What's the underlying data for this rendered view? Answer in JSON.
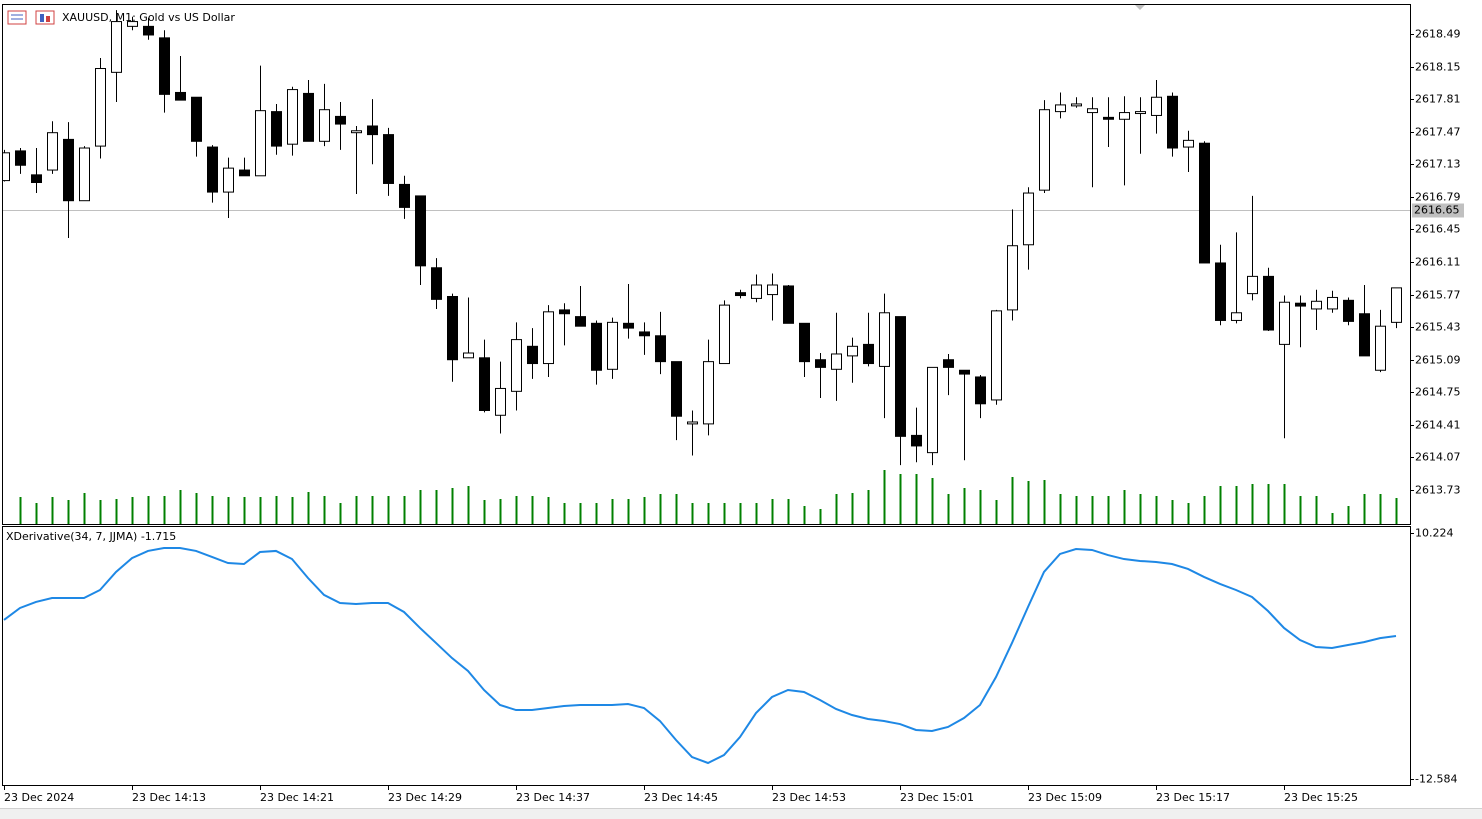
{
  "chart_data": [
    {
      "type": "candlestick",
      "title": "XAUUSD, M1:  Gold vs US Dollar",
      "categories": [
        "23 Dec 2024",
        null,
        null,
        null,
        null,
        null,
        null,
        null,
        "23 Dec 14:13",
        null,
        null,
        null,
        null,
        null,
        null,
        null,
        "23 Dec 14:21",
        null,
        null,
        null,
        null,
        null,
        null,
        null,
        "23 Dec 14:29",
        null,
        null,
        null,
        null,
        null,
        null,
        null,
        "23 Dec 14:37",
        null,
        null,
        null,
        null,
        null,
        null,
        null,
        "23 Dec 14:45",
        null,
        null,
        null,
        null,
        null,
        null,
        null,
        "23 Dec 14:53",
        null,
        null,
        null,
        null,
        null,
        null,
        null,
        "23 Dec 15:01",
        null,
        null,
        null,
        null,
        null,
        null,
        null,
        "23 Dec 15:09",
        null,
        null,
        null,
        null,
        null,
        null,
        null,
        "23 Dec 15:17",
        null,
        null,
        null,
        null,
        null,
        null,
        null,
        "23 Dec 15:25",
        null,
        null,
        null,
        null,
        null,
        null,
        null
      ],
      "open": [
        2616.96,
        2617.27,
        2617.02,
        2617.07,
        2617.39,
        2616.75,
        2617.32,
        2618.09,
        2618.57,
        2618.57,
        2618.45,
        2617.88,
        2617.83,
        2617.31,
        2616.84,
        2617.07,
        2617.01,
        2617.68,
        2617.34,
        2617.87,
        2617.37,
        2617.63,
        2617.46,
        2617.53,
        2617.44,
        2616.92,
        2616.8,
        2616.05,
        2615.75,
        2615.11,
        2615.11,
        2614.51,
        2614.76,
        2615.23,
        2615.05,
        2615.61,
        2615.54,
        2615.47,
        2614.99,
        2615.47,
        2615.38,
        2615.34,
        2615.07,
        2614.42,
        2614.42,
        2615.05,
        2615.79,
        2615.73,
        2615.77,
        2615.86,
        2615.47,
        2615.09,
        2614.99,
        2615.13,
        2615.25,
        2615.02,
        2615.54,
        2614.3,
        2614.12,
        2615.09,
        2614.98,
        2614.91,
        2614.67,
        2615.61,
        2616.29,
        2616.86,
        2617.68,
        2617.74,
        2617.67,
        2617.62,
        2617.6,
        2617.66,
        2617.64,
        2617.84,
        2617.31,
        2617.35,
        2616.1,
        2615.5,
        2615.78,
        2615.96,
        2615.25,
        2615.68,
        2615.62,
        2615.62,
        2615.71,
        2615.57,
        2614.98,
        2615.48
      ],
      "high": [
        2617.28,
        2617.3,
        2617.3,
        2617.58,
        2617.57,
        2617.32,
        2618.24,
        2618.74,
        2618.67,
        2618.66,
        2618.53,
        2618.26,
        2617.83,
        2617.33,
        2617.2,
        2617.2,
        2618.16,
        2617.76,
        2617.94,
        2618.01,
        2617.97,
        2617.78,
        2617.53,
        2617.81,
        2617.51,
        2617.01,
        2616.8,
        2616.15,
        2615.78,
        2615.74,
        2615.3,
        2615.07,
        2615.48,
        2615.42,
        2615.66,
        2615.68,
        2615.86,
        2615.5,
        2615.53,
        2615.88,
        2615.48,
        2615.59,
        2615.07,
        2614.56,
        2615.3,
        2615.71,
        2615.82,
        2615.98,
        2615.99,
        2615.87,
        2615.47,
        2615.16,
        2615.58,
        2615.32,
        2615.58,
        2615.78,
        2615.54,
        2614.59,
        2615.01,
        2615.15,
        2614.98,
        2614.93,
        2615.61,
        2616.66,
        2616.89,
        2617.8,
        2617.88,
        2617.83,
        2617.83,
        2617.83,
        2617.84,
        2617.83,
        2618.01,
        2617.88,
        2617.48,
        2617.37,
        2616.29,
        2616.42,
        2616.8,
        2616.05,
        2615.76,
        2615.76,
        2615.82,
        2615.81,
        2615.74,
        2615.87,
        2615.61,
        2615.84
      ],
      "low": [
        2616.95,
        2617.03,
        2616.83,
        2617.03,
        2616.36,
        2616.75,
        2617.19,
        2617.78,
        2618.53,
        2618.43,
        2617.67,
        2617.8,
        2617.21,
        2616.73,
        2616.57,
        2617.01,
        2617.01,
        2617.23,
        2617.22,
        2617.37,
        2617.32,
        2617.28,
        2616.82,
        2617.13,
        2616.8,
        2616.56,
        2615.87,
        2615.62,
        2614.86,
        2615.11,
        2614.54,
        2614.32,
        2614.56,
        2614.89,
        2614.91,
        2615.24,
        2615.44,
        2614.83,
        2614.89,
        2615.31,
        2615.14,
        2614.94,
        2614.25,
        2614.09,
        2614.3,
        2615.05,
        2615.73,
        2615.69,
        2615.5,
        2615.47,
        2614.91,
        2614.69,
        2614.66,
        2614.85,
        2615.02,
        2614.48,
        2613.99,
        2614.02,
        2613.99,
        2614.72,
        2614.04,
        2614.48,
        2614.62,
        2615.5,
        2616.03,
        2616.83,
        2617.61,
        2617.72,
        2616.89,
        2617.31,
        2616.91,
        2617.24,
        2617.45,
        2617.21,
        2617.05,
        2616.1,
        2615.45,
        2615.47,
        2615.71,
        2615.39,
        2614.27,
        2615.22,
        2615.4,
        2615.58,
        2615.45,
        2615.13,
        2614.96,
        2615.42
      ],
      "close": [
        2617.25,
        2617.12,
        2616.94,
        2617.46,
        2616.75,
        2617.3,
        2618.13,
        2618.62,
        2618.62,
        2618.48,
        2617.86,
        2617.8,
        2617.37,
        2616.84,
        2617.09,
        2617.01,
        2617.69,
        2617.32,
        2617.91,
        2617.37,
        2617.7,
        2617.55,
        2617.48,
        2617.44,
        2616.93,
        2616.68,
        2616.07,
        2615.72,
        2615.09,
        2615.16,
        2614.56,
        2614.79,
        2615.3,
        2615.05,
        2615.59,
        2615.57,
        2615.44,
        2614.98,
        2615.48,
        2615.42,
        2615.34,
        2615.07,
        2614.5,
        2614.44,
        2615.07,
        2615.66,
        2615.76,
        2615.87,
        2615.87,
        2615.47,
        2615.07,
        2615.01,
        2615.15,
        2615.23,
        2615.05,
        2615.58,
        2614.29,
        2614.19,
        2615.01,
        2615.01,
        2614.94,
        2614.63,
        2615.6,
        2616.28,
        2616.83,
        2617.7,
        2617.75,
        2617.76,
        2617.71,
        2617.6,
        2617.67,
        2617.68,
        2617.83,
        2617.3,
        2617.38,
        2616.1,
        2615.5,
        2615.58,
        2615.96,
        2615.4,
        2615.69,
        2615.65,
        2615.7,
        2615.74,
        2615.49,
        2615.13,
        2615.44,
        2615.84
      ],
      "volume": [
        null,
        27,
        21,
        27,
        24,
        31,
        24,
        25,
        27,
        28,
        28,
        34,
        31,
        28,
        27,
        27,
        27,
        28,
        27,
        32,
        28,
        21,
        28,
        28,
        28,
        28,
        34,
        34,
        36,
        38,
        24,
        25,
        28,
        28,
        27,
        21,
        21,
        21,
        25,
        25,
        27,
        30,
        30,
        21,
        21,
        21,
        21,
        21,
        25,
        25,
        18,
        15,
        30,
        31,
        34,
        54,
        50,
        50,
        46,
        30,
        36,
        34,
        24,
        47,
        43,
        44,
        30,
        28,
        28,
        28,
        34,
        30,
        28,
        24,
        21,
        28,
        38,
        38,
        40,
        40,
        40,
        28,
        28,
        11,
        18,
        30,
        30,
        26
      ],
      "up_color": "#ffffff",
      "down_color": "#000000",
      "volume_color": "#008000",
      "ylim": [
        2613.375,
        2618.793
      ],
      "yticks": [
        2618.49,
        2618.15,
        2617.81,
        2617.47,
        2617.13,
        2616.79,
        2616.45,
        2616.11,
        2615.77,
        2615.43,
        2615.09,
        2614.75,
        2614.41,
        2614.07,
        2613.73
      ],
      "last_price": 2616.65
    },
    {
      "type": "line",
      "title": "XDerivative(34, 7, JJMA) -1.715",
      "color": "#1e88e5",
      "values": [
        2.16,
        3.27,
        3.83,
        4.2,
        4.2,
        4.2,
        4.94,
        6.61,
        7.9,
        8.56,
        8.83,
        8.83,
        8.56,
        8.0,
        7.44,
        7.35,
        8.46,
        8.56,
        7.81,
        6.05,
        4.48,
        3.73,
        3.64,
        3.73,
        3.73,
        2.9,
        1.42,
        0.03,
        -1.37,
        -2.57,
        -4.33,
        -5.72,
        -6.19,
        -6.19,
        -6.0,
        -5.82,
        -5.72,
        -5.72,
        -5.72,
        -5.63,
        -6.0,
        -7.21,
        -8.97,
        -10.55,
        -11.1,
        -10.36,
        -8.69,
        -6.47,
        -4.98,
        -4.33,
        -4.52,
        -5.26,
        -6.09,
        -6.65,
        -7.02,
        -7.21,
        -7.49,
        -8.04,
        -8.13,
        -7.76,
        -6.93,
        -5.72,
        -3.13,
        0.03,
        3.36,
        6.61,
        8.28,
        8.74,
        8.65,
        8.18,
        7.81,
        7.63,
        7.54,
        7.35,
        6.89,
        6.15,
        5.5,
        4.94,
        4.29,
        2.99,
        1.42,
        0.3,
        -0.35,
        -0.44,
        -0.16,
        0.11,
        0.48,
        0.67
      ],
      "ylim": [
        -12.584,
        10.224
      ],
      "yticks": [
        10.224,
        -12.584
      ]
    }
  ]
}
